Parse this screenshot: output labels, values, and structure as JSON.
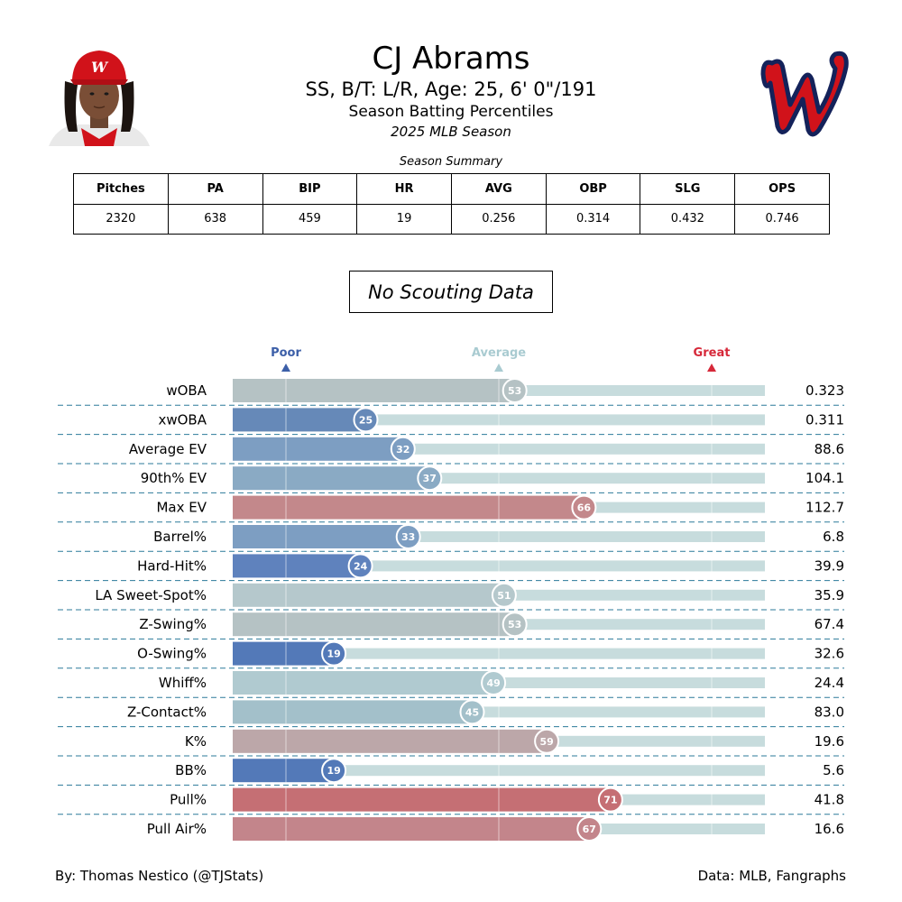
{
  "header": {
    "name": "CJ Abrams",
    "bio": "SS, B/T: L/R, Age: 25, 6' 0\"/191",
    "subtitle": "Season Batting Percentiles",
    "season": "2025 MLB Season"
  },
  "summary": {
    "caption": "Season Summary",
    "columns": [
      "Pitches",
      "PA",
      "BIP",
      "HR",
      "AVG",
      "OBP",
      "SLG",
      "OPS"
    ],
    "values": [
      "2320",
      "638",
      "459",
      "19",
      "0.256",
      "0.314",
      "0.432",
      "0.746"
    ]
  },
  "scouting": {
    "text": "No Scouting Data"
  },
  "chart_data": {
    "type": "bar",
    "orientation": "horizontal",
    "xlim": [
      0,
      100
    ],
    "reference_markers": [
      {
        "label": "Poor",
        "value": 10,
        "color": "#3c5fa8"
      },
      {
        "label": "Average",
        "value": 50,
        "color": "#a9cbd1"
      },
      {
        "label": "Great",
        "value": 90,
        "color": "#d62839"
      }
    ],
    "categories": [
      "wOBA",
      "xwOBA",
      "Average EV",
      "90th% EV",
      "Max EV",
      "Barrel%",
      "Hard-Hit%",
      "LA Sweet-Spot%",
      "Z-Swing%",
      "O-Swing%",
      "Whiff%",
      "Z-Contact%",
      "K%",
      "BB%",
      "Pull%",
      "Pull Air%"
    ],
    "percentiles": [
      53,
      25,
      32,
      37,
      66,
      33,
      24,
      51,
      53,
      19,
      49,
      45,
      59,
      19,
      71,
      67
    ],
    "stat_values": [
      "0.323",
      "0.311",
      "88.6",
      "104.1",
      "112.7",
      "6.8",
      "39.9",
      "35.9",
      "67.4",
      "32.6",
      "24.4",
      "83.0",
      "19.6",
      "5.6",
      "41.8",
      "16.6"
    ],
    "bar_colors": [
      "#b5c2c4",
      "#6689b8",
      "#7d9ec2",
      "#8aaac4",
      "#c3888b",
      "#7d9ec2",
      "#5f82bd",
      "#b5c8cc",
      "#b5c2c4",
      "#5379b8",
      "#b0cad0",
      "#a3c0ca",
      "#bca7a9",
      "#5379b8",
      "#c56f74",
      "#c3858b"
    ],
    "track_color": "#c7dcdd",
    "grid": true
  },
  "footer": {
    "left": "By: Thomas Nestico (@TJStats)",
    "right": "Data: MLB, Fangraphs"
  },
  "colors": {
    "team_red": "#d1121a",
    "team_navy": "#14225a"
  },
  "icons": {
    "headshot": "player-headshot-icon",
    "logo": "nationals-w-logo-icon"
  }
}
